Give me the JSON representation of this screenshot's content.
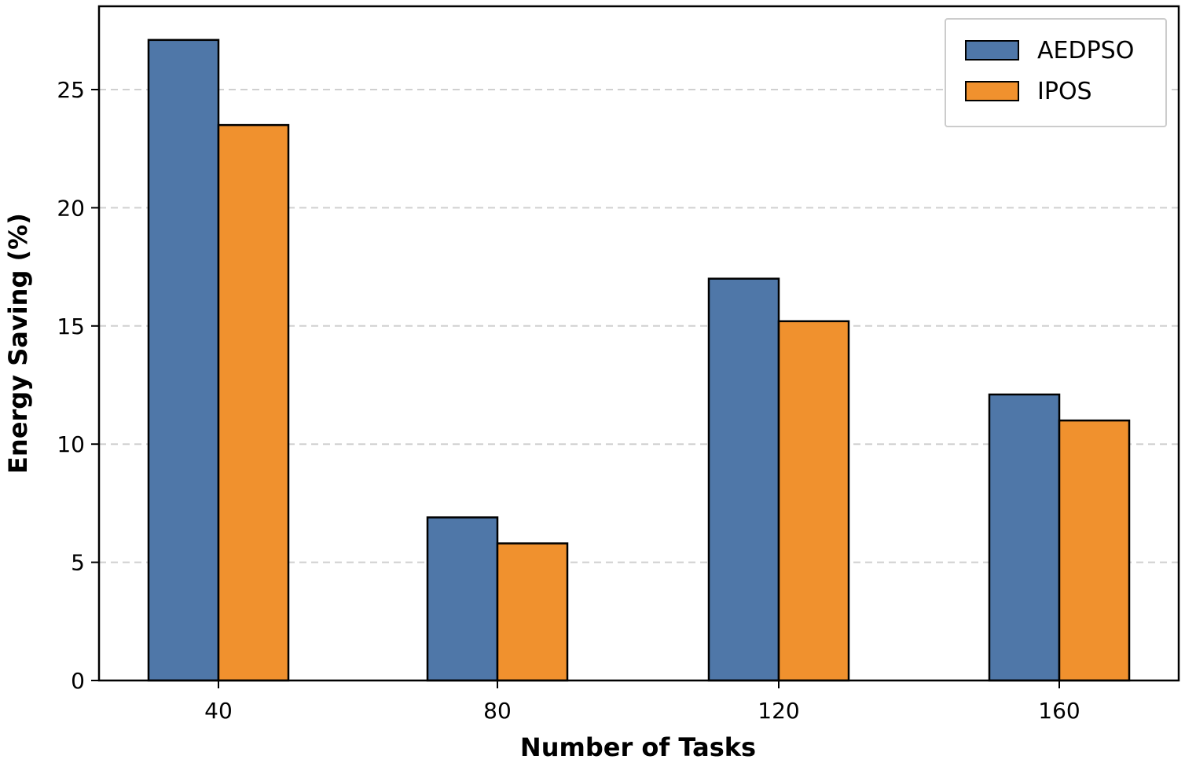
{
  "chart_data": {
    "type": "bar",
    "title": "",
    "xlabel": "Number of Tasks",
    "ylabel": "Energy Saving (%)",
    "categories": [
      "40",
      "80",
      "120",
      "160"
    ],
    "series": [
      {
        "name": "AEDPSO",
        "color": "#4f77a8",
        "values": [
          27.1,
          6.9,
          17.0,
          12.1
        ]
      },
      {
        "name": "IPOS",
        "color": "#f0912e",
        "values": [
          23.5,
          5.8,
          15.2,
          11.0
        ]
      }
    ],
    "yticks": [
      0,
      5,
      10,
      15,
      20,
      25
    ],
    "ylim": [
      0,
      28.5
    ],
    "grid": "horizontal dashed",
    "legend_position": "top-right"
  }
}
